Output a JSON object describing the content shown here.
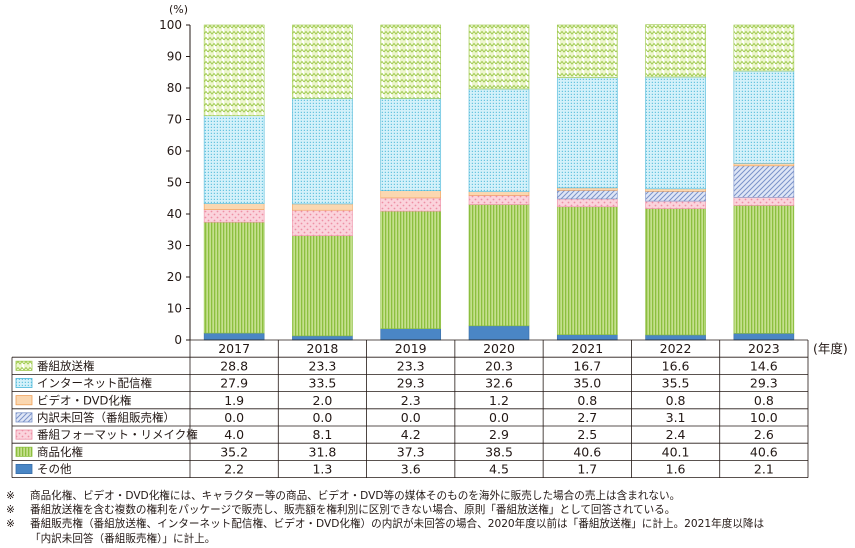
{
  "chart_data": {
    "type": "bar",
    "stacked": true,
    "title": "",
    "xlabel": "(年度)",
    "ylabel": "(%)",
    "ylim": [
      0,
      100
    ],
    "y_ticks": [
      "0",
      "10",
      "20",
      "30",
      "40",
      "50",
      "60",
      "70",
      "80",
      "90",
      "100"
    ],
    "categories": [
      "2017",
      "2018",
      "2019",
      "2020",
      "2021",
      "2022",
      "2023"
    ],
    "grid": false,
    "legend_position": "table-left",
    "series": [
      {
        "name": "その他",
        "values": [
          2.2,
          1.3,
          3.6,
          4.5,
          1.7,
          1.6,
          2.1
        ],
        "labels": [
          "2.2",
          "1.3",
          "3.6",
          "4.5",
          "1.7",
          "1.6",
          "2.1"
        ],
        "fill": "#4a86c5",
        "pattern": "solid",
        "stroke": "#3a6fa8"
      },
      {
        "name": "商品化権",
        "values": [
          35.2,
          31.8,
          37.3,
          38.5,
          40.6,
          40.1,
          40.6
        ],
        "labels": [
          "35.2",
          "31.8",
          "37.3",
          "38.5",
          "40.6",
          "40.1",
          "40.6"
        ],
        "fill": "#c5e08e",
        "pattern": "vlines",
        "stroke": "#8cbf3f"
      },
      {
        "name": "番組フォーマット・リメイク権",
        "values": [
          4.0,
          8.1,
          4.2,
          2.9,
          2.5,
          2.4,
          2.6
        ],
        "labels": [
          "4.0",
          "8.1",
          "4.2",
          "2.9",
          "2.5",
          "2.4",
          "2.6"
        ],
        "fill": "#fbd3dc",
        "pattern": "dots",
        "stroke": "#ee8fa5"
      },
      {
        "name": "内訳未回答（番組販売権）",
        "values": [
          0.0,
          0.0,
          0.0,
          0.0,
          2.7,
          3.1,
          10.0
        ],
        "labels": [
          "0.0",
          "0.0",
          "0.0",
          "0.0",
          "2.7",
          "3.1",
          "10.0"
        ],
        "fill": "#dfe6f6",
        "pattern": "diag",
        "stroke": "#7b93c9"
      },
      {
        "name": "ビデオ・DVD化権",
        "values": [
          1.9,
          2.0,
          2.3,
          1.2,
          0.8,
          0.8,
          0.8
        ],
        "labels": [
          "1.9",
          "2.0",
          "2.3",
          "1.2",
          "0.8",
          "0.8",
          "0.8"
        ],
        "fill": "#fbd7b0",
        "pattern": "solid",
        "stroke": "#f0a057"
      },
      {
        "name": "インターネット配信権",
        "values": [
          27.9,
          33.5,
          29.3,
          32.6,
          35.0,
          35.5,
          29.3
        ],
        "labels": [
          "27.9",
          "33.5",
          "29.3",
          "32.6",
          "35.0",
          "35.5",
          "29.3"
        ],
        "fill": "#d4f1fa",
        "pattern": "dotgrid",
        "stroke": "#4fb9d9"
      },
      {
        "name": "番組放送権",
        "values": [
          28.8,
          23.3,
          23.3,
          20.3,
          16.7,
          16.6,
          14.6
        ],
        "labels": [
          "28.8",
          "23.3",
          "23.3",
          "20.3",
          "16.7",
          "16.6",
          "14.6"
        ],
        "fill": "#eef6cf",
        "pattern": "zigzag",
        "stroke": "#9cc84a"
      }
    ]
  },
  "notes": [
    {
      "mark": "※",
      "text": "商品化権、ビデオ・DVD化権には、キャラクター等の商品、ビデオ・DVD等の媒体そのものを海外に販売した場合の売上は含まれない。"
    },
    {
      "mark": "※",
      "text": "番組放送権を含む複数の権利をパッケージで販売し、販売額を権利別に区別できない場合、原則「番組放送権」として回答されている。"
    },
    {
      "mark": "※",
      "text": "番組販売権（番組放送権、インターネット配信権、ビデオ・DVD化権）の内訳が未回答の場合、2020年度以前は「番組放送権」に計上。2021年度以降は"
    },
    {
      "mark": "",
      "text": "「内訳未回答（番組販売権）」に計上。"
    }
  ]
}
